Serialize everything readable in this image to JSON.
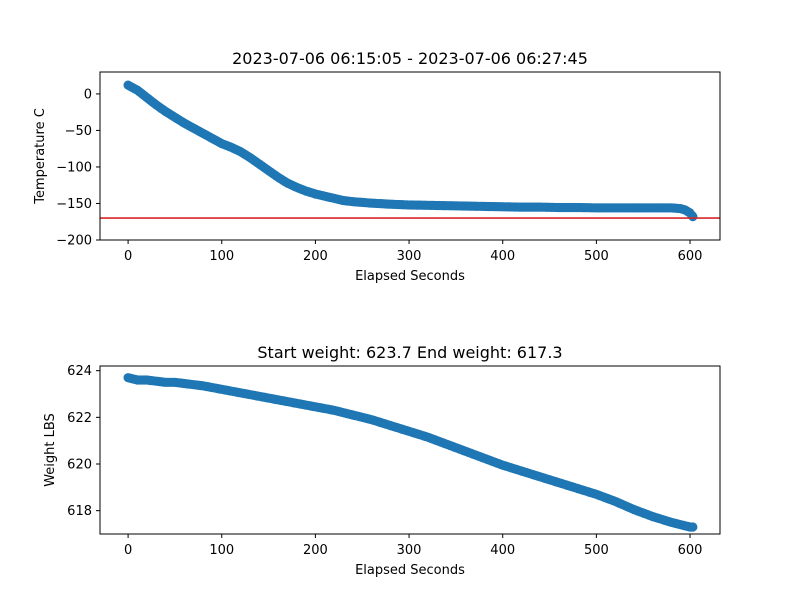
{
  "chart_data": [
    {
      "type": "scatter",
      "title": "2023-07-06 06:15:05 - 2023-07-06 06:27:45",
      "xlabel": "Elapsed Seconds",
      "ylabel": "Temperature C",
      "xlim": [
        -30,
        632
      ],
      "ylim": [
        -200,
        30
      ],
      "xticks": [
        0,
        100,
        200,
        300,
        400,
        500,
        600
      ],
      "yticks": [
        0,
        -50,
        -100,
        -150,
        -200
      ],
      "xtick_labels": [
        "0",
        "100",
        "200",
        "300",
        "400",
        "500",
        "600"
      ],
      "ytick_labels": [
        "0",
        "−50",
        "−100",
        "−150",
        "−200"
      ],
      "marker_color": "#1f77b4",
      "reference_line": {
        "y": -170,
        "color": "#d62728"
      },
      "grid": false,
      "series": [
        {
          "x": [
            0,
            10,
            20,
            30,
            40,
            50,
            60,
            70,
            80,
            90,
            100,
            110,
            120,
            130,
            140,
            150,
            160,
            170,
            180,
            190,
            200,
            210,
            220,
            230,
            240,
            250,
            260,
            280,
            300,
            320,
            340,
            360,
            380,
            400,
            420,
            440,
            460,
            480,
            500,
            520,
            540,
            560,
            580,
            590,
            595,
            600,
            603
          ],
          "y": [
            12,
            5,
            -5,
            -15,
            -24,
            -32,
            -40,
            -47,
            -54,
            -61,
            -68,
            -73,
            -79,
            -87,
            -96,
            -105,
            -114,
            -122,
            -128,
            -133,
            -137,
            -140,
            -143,
            -146,
            -147.5,
            -148.5,
            -149.5,
            -151,
            -152,
            -152.5,
            -153,
            -153.5,
            -154,
            -154.5,
            -155,
            -155,
            -155.5,
            -155.5,
            -156,
            -156,
            -156,
            -156,
            -156,
            -157,
            -159,
            -163,
            -168
          ]
        }
      ]
    },
    {
      "type": "scatter",
      "title": "Start weight: 623.7 End weight: 617.3",
      "xlabel": "Elapsed Seconds",
      "ylabel": "Weight LBS",
      "xlim": [
        -30,
        632
      ],
      "ylim": [
        617.0,
        624.2
      ],
      "xticks": [
        0,
        100,
        200,
        300,
        400,
        500,
        600
      ],
      "yticks": [
        618,
        620,
        622,
        624
      ],
      "xtick_labels": [
        "0",
        "100",
        "200",
        "300",
        "400",
        "500",
        "600"
      ],
      "ytick_labels": [
        "618",
        "620",
        "622",
        "624"
      ],
      "marker_color": "#1f77b4",
      "grid": false,
      "series": [
        {
          "x": [
            0,
            10,
            20,
            30,
            40,
            50,
            60,
            80,
            100,
            120,
            140,
            160,
            180,
            200,
            220,
            240,
            260,
            280,
            300,
            320,
            340,
            360,
            380,
            400,
            420,
            440,
            460,
            480,
            500,
            520,
            540,
            560,
            580,
            600,
            603
          ],
          "y": [
            623.7,
            623.6,
            623.6,
            623.55,
            623.5,
            623.5,
            623.45,
            623.35,
            623.2,
            623.05,
            622.9,
            622.75,
            622.6,
            622.45,
            622.3,
            622.1,
            621.9,
            621.65,
            621.4,
            621.15,
            620.85,
            620.55,
            620.25,
            619.95,
            619.7,
            619.45,
            619.2,
            618.95,
            618.7,
            618.4,
            618.05,
            617.75,
            617.5,
            617.3,
            617.3
          ]
        }
      ]
    }
  ]
}
